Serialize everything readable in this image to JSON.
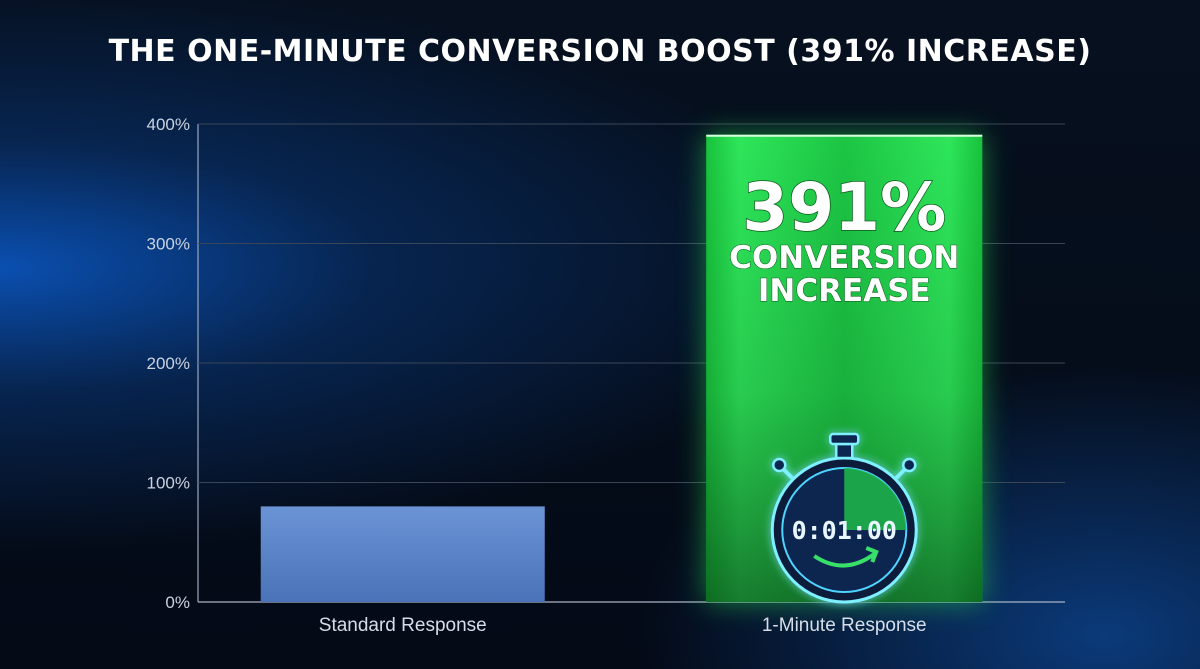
{
  "chart_data": {
    "type": "bar",
    "title": "THE ONE-MINUTE CONVERSION BOOST (391% INCREASE)",
    "categories": [
      "Standard Response",
      "1-Minute Response"
    ],
    "values": [
      80,
      391
    ],
    "ylim": [
      0,
      400
    ],
    "yticks": [
      {
        "value": 0,
        "label": "0%"
      },
      {
        "value": 100,
        "label": "100%"
      },
      {
        "value": 200,
        "label": "200%"
      },
      {
        "value": 300,
        "label": "300%"
      },
      {
        "value": 400,
        "label": "400%"
      }
    ],
    "grid": true,
    "bar_colors": [
      "#5b86c9",
      "#22d24a"
    ],
    "annotation": {
      "value_text": "391%",
      "line1": "CONVERSION",
      "line2": "INCREASE"
    },
    "stopwatch": {
      "icon": "stopwatch-icon",
      "time": "0:01:00"
    }
  }
}
